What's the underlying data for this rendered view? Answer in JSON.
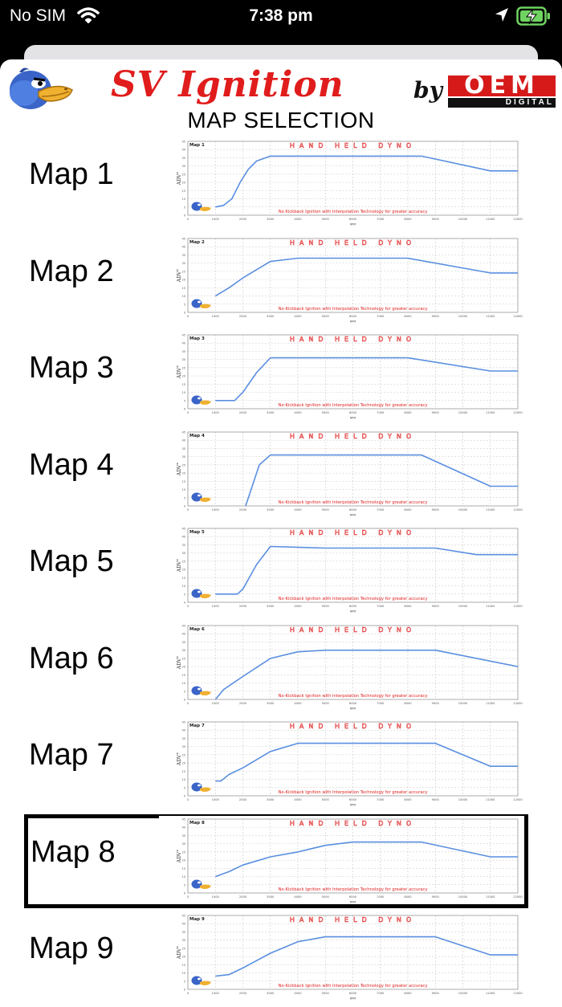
{
  "status_bar": {
    "carrier": "No SIM",
    "time": "7:38 pm"
  },
  "header": {
    "brand_title": "SV Ignition",
    "brand_by": "by",
    "oem_word": "OEM",
    "oem_sub": "DIGITAL",
    "page_title": "MAP SELECTION"
  },
  "colors": {
    "brand_red": "#e01c1c",
    "curve_blue": "#5a8fe0",
    "grid_gray": "#c8c8c8"
  },
  "chart_common": {
    "x_ticks": [
      "0",
      "1000",
      "2000",
      "3000",
      "4000",
      "5000",
      "6000",
      "7000",
      "8000",
      "9000",
      "10000",
      "11000",
      "12000"
    ],
    "y_ticks": [
      "0",
      "5",
      "10",
      "15",
      "20",
      "25",
      "30",
      "35",
      "40",
      "45"
    ],
    "xlabel": "RPM",
    "ylabel": "ADV°",
    "dyno_title": "HAND HELD DYNO",
    "footer_map1": "No Kickback Ignition with Interpolation Technology for greater accuracy",
    "footer": "No-Kickback Ignition with Interpolation Technology for greater accuracy"
  },
  "maps": [
    {
      "label": "Map 1",
      "chart_title": "Map 1",
      "selected": false,
      "chart_data": {
        "type": "line",
        "xlabel": "RPM",
        "ylabel": "ADV°",
        "xlim": [
          0,
          12000
        ],
        "ylim": [
          0,
          45
        ],
        "x": [
          1000,
          1300,
          1600,
          1900,
          2200,
          2500,
          3000,
          8500,
          11000,
          12000
        ],
        "y": [
          5,
          6,
          10,
          20,
          28,
          33,
          36,
          36,
          27,
          27
        ]
      }
    },
    {
      "label": "Map 2",
      "chart_title": "Map 2",
      "selected": false,
      "chart_data": {
        "type": "line",
        "xlabel": "RPM",
        "ylabel": "ADV°",
        "xlim": [
          0,
          12000
        ],
        "ylim": [
          0,
          45
        ],
        "x": [
          1000,
          1500,
          2000,
          2500,
          3000,
          4000,
          8000,
          11000,
          12000
        ],
        "y": [
          10,
          15,
          21,
          26,
          31,
          33,
          33,
          24,
          24
        ]
      }
    },
    {
      "label": "Map 3",
      "chart_title": "Map 3",
      "selected": false,
      "chart_data": {
        "type": "line",
        "xlabel": "RPM",
        "ylabel": "ADV°",
        "xlim": [
          0,
          12000
        ],
        "ylim": [
          0,
          45
        ],
        "x": [
          1000,
          1700,
          2000,
          2500,
          3000,
          8000,
          11000,
          12000
        ],
        "y": [
          5,
          5,
          10,
          22,
          31,
          31,
          23,
          23
        ]
      }
    },
    {
      "label": "Map 4",
      "chart_title": "Map 4",
      "selected": false,
      "chart_data": {
        "type": "line",
        "xlabel": "RPM",
        "ylabel": "ADV°",
        "xlim": [
          0,
          12000
        ],
        "ylim": [
          0,
          45
        ],
        "x": [
          2100,
          2300,
          2600,
          3000,
          8500,
          11000,
          12000
        ],
        "y": [
          0,
          10,
          25,
          31,
          31,
          12,
          12
        ]
      }
    },
    {
      "label": "Map 5",
      "chart_title": "Map 5",
      "selected": false,
      "chart_data": {
        "type": "line",
        "xlabel": "RPM",
        "ylabel": "ADV°",
        "xlim": [
          0,
          12000
        ],
        "ylim": [
          0,
          45
        ],
        "x": [
          1000,
          1800,
          2000,
          2500,
          3000,
          5000,
          9000,
          10500,
          12000
        ],
        "y": [
          5,
          5,
          8,
          23,
          34,
          33,
          33,
          29,
          29
        ]
      }
    },
    {
      "label": "Map 6",
      "chart_title": "Map 6",
      "selected": false,
      "chart_data": {
        "type": "line",
        "xlabel": "RPM",
        "ylabel": "ADV°",
        "xlim": [
          0,
          12000
        ],
        "ylim": [
          0,
          45
        ],
        "x": [
          1000,
          1300,
          2000,
          3000,
          4000,
          5000,
          9000,
          12000
        ],
        "y": [
          0,
          6,
          14,
          25,
          29,
          30,
          30,
          20
        ]
      }
    },
    {
      "label": "Map 7",
      "chart_title": "Map 7",
      "selected": false,
      "chart_data": {
        "type": "line",
        "xlabel": "RPM",
        "ylabel": "ADV°",
        "xlim": [
          0,
          12000
        ],
        "ylim": [
          0,
          45
        ],
        "x": [
          1000,
          1200,
          1500,
          2000,
          3000,
          4000,
          9000,
          11000,
          12000
        ],
        "y": [
          9,
          9,
          13,
          17,
          27,
          32,
          32,
          18,
          18
        ]
      }
    },
    {
      "label": "Map 8",
      "chart_title": "Map 8",
      "selected": true,
      "chart_data": {
        "type": "line",
        "xlabel": "RPM",
        "ylabel": "ADV°",
        "xlim": [
          0,
          12000
        ],
        "ylim": [
          0,
          45
        ],
        "x": [
          1000,
          1500,
          2000,
          3000,
          4000,
          5000,
          6000,
          8500,
          11000,
          12000
        ],
        "y": [
          10,
          13,
          17,
          22,
          25,
          29,
          31,
          31,
          22,
          22
        ]
      }
    },
    {
      "label": "Map 9",
      "chart_title": "Map 9",
      "selected": false,
      "chart_data": {
        "type": "line",
        "xlabel": "RPM",
        "ylabel": "ADV°",
        "xlim": [
          0,
          12000
        ],
        "ylim": [
          0,
          45
        ],
        "x": [
          1000,
          1500,
          2000,
          3000,
          4000,
          5000,
          9000,
          11000,
          12000
        ],
        "y": [
          8,
          9,
          13,
          22,
          29,
          32,
          32,
          21,
          21
        ]
      }
    }
  ]
}
